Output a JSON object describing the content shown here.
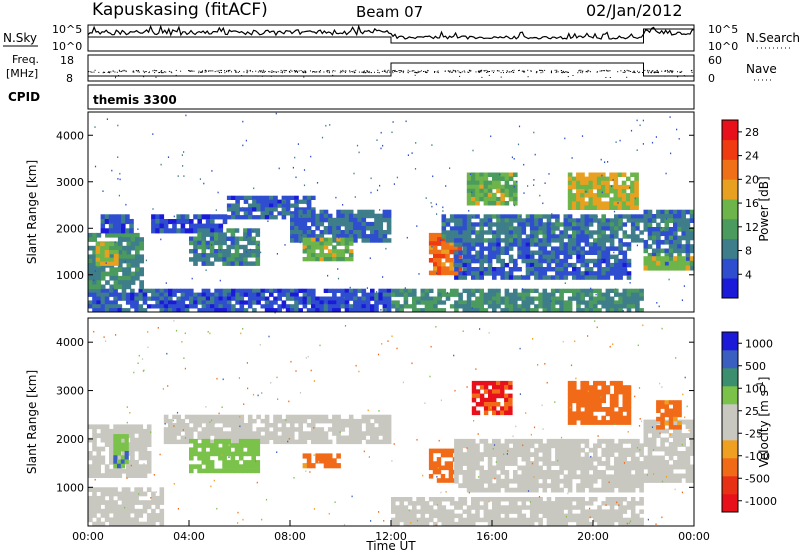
{
  "header": {
    "station": "Kapuskasing (fitACF)",
    "beam": "Beam 07",
    "date": "02/Jan/2012"
  },
  "top_panels": {
    "nsky": {
      "label": "N.Sky",
      "tick_top": "10^5",
      "tick_bottom": "10^0"
    },
    "nsearch": {
      "label": "N.Search",
      "tick_top": "10^5",
      "tick_bottom": "10^0"
    },
    "freq": {
      "label_line1": "Freq.",
      "label_line2": "[MHz]",
      "tick_top": "18",
      "tick_bottom": "8"
    },
    "nave": {
      "label": "Nave",
      "tick_top": "60",
      "tick_bottom": "0"
    },
    "cpid": {
      "label": "CPID",
      "value": "themis 3300"
    }
  },
  "colors": {
    "power_scale": [
      "#1a1ad8",
      "#2e4ecf",
      "#3e7d8a",
      "#4b9a5e",
      "#6db44a",
      "#e8a020",
      "#f07018",
      "#f03a10",
      "#e8101a"
    ],
    "velocity_scale": [
      "#1a1ad8",
      "#3a5fc0",
      "#3c8f6e",
      "#7ac24a",
      "#c8c8c0",
      "#c8c8c0",
      "#f0a020",
      "#f06a18",
      "#e83015",
      "#e8101a"
    ]
  },
  "chart_data": [
    {
      "type": "heatmap",
      "name": "power-panel",
      "ylabel": "Slant Range [km]",
      "xlabel": "",
      "xlim": [
        "00:00",
        "00:00"
      ],
      "ylim": [
        200,
        4500
      ],
      "yticks": [
        "1000",
        "2000",
        "3000",
        "4000"
      ],
      "colorbar": {
        "label": "Power [dB]",
        "ticks": [
          "4",
          "8",
          "12",
          "16",
          "20",
          "24",
          "28"
        ],
        "range": [
          0,
          30
        ]
      },
      "regions": [
        {
          "t0": 0.0,
          "t1": 3.0,
          "r0": 200,
          "r1": 700,
          "v": 6
        },
        {
          "t0": 0.0,
          "t1": 2.2,
          "r0": 700,
          "r1": 1900,
          "v": 10
        },
        {
          "t0": 0.3,
          "t1": 1.2,
          "r0": 1200,
          "r1": 1700,
          "v": 16
        },
        {
          "t0": 0.5,
          "t1": 1.8,
          "r0": 1900,
          "r1": 2300,
          "v": 5
        },
        {
          "t0": 2.5,
          "t1": 5.5,
          "r0": 1900,
          "r1": 2300,
          "v": 5
        },
        {
          "t0": 4.0,
          "t1": 6.8,
          "r0": 1200,
          "r1": 2000,
          "v": 9
        },
        {
          "t0": 5.5,
          "t1": 9.0,
          "r0": 2200,
          "r1": 2700,
          "v": 6
        },
        {
          "t0": 8.0,
          "t1": 12.0,
          "r0": 1700,
          "r1": 2400,
          "v": 7
        },
        {
          "t0": 8.5,
          "t1": 10.5,
          "r0": 1300,
          "r1": 1800,
          "v": 14
        },
        {
          "t0": 3.0,
          "t1": 12.0,
          "r0": 200,
          "r1": 700,
          "v": 5
        },
        {
          "t0": 12.0,
          "t1": 22.0,
          "r0": 200,
          "r1": 700,
          "v": 10
        },
        {
          "t0": 13.5,
          "t1": 14.8,
          "r0": 1000,
          "r1": 1900,
          "v": 22
        },
        {
          "t0": 14.5,
          "t1": 21.5,
          "r0": 900,
          "r1": 1700,
          "v": 6
        },
        {
          "t0": 14.0,
          "t1": 22.0,
          "r0": 1700,
          "r1": 2300,
          "v": 8
        },
        {
          "t0": 15.0,
          "t1": 17.0,
          "r0": 2500,
          "r1": 3200,
          "v": 14
        },
        {
          "t0": 19.0,
          "t1": 21.8,
          "r0": 2400,
          "r1": 3200,
          "v": 17
        },
        {
          "t0": 22.0,
          "t1": 24.0,
          "r0": 1100,
          "r1": 2400,
          "v": 8
        },
        {
          "t0": 22.0,
          "t1": 24.0,
          "r0": 1100,
          "r1": 1400,
          "v": 16
        }
      ]
    },
    {
      "type": "heatmap",
      "name": "velocity-panel",
      "ylabel": "Slant Range [km]",
      "xlabel": "Time UT",
      "xticks": [
        "00:00",
        "04:00",
        "08:00",
        "12:00",
        "16:00",
        "20:00",
        "00:00"
      ],
      "ylim": [
        200,
        4500
      ],
      "yticks": [
        "1000",
        "2000",
        "3000",
        "4000"
      ],
      "colorbar": {
        "label": "Velocity [m s",
        "label_sup": "-1",
        "label_end": "]",
        "ticks": [
          "1000",
          "500",
          "100",
          "25",
          "-25",
          "-100",
          "-500",
          "-1000"
        ]
      },
      "regions": [
        {
          "t0": 0.0,
          "t1": 3.0,
          "r0": 200,
          "r1": 1000,
          "v": 0
        },
        {
          "t0": 0.0,
          "t1": 2.5,
          "r0": 1200,
          "r1": 2300,
          "v": 0
        },
        {
          "t0": 1.0,
          "t1": 1.6,
          "r0": 1400,
          "r1": 2100,
          "v": 80
        },
        {
          "t0": 3.0,
          "t1": 12.0,
          "r0": 1900,
          "r1": 2500,
          "v": 0
        },
        {
          "t0": 4.0,
          "t1": 6.8,
          "r0": 1300,
          "r1": 2000,
          "v": 60
        },
        {
          "t0": 8.5,
          "t1": 10.0,
          "r0": 1400,
          "r1": 1700,
          "v": -150
        },
        {
          "t0": 12.0,
          "t1": 22.0,
          "r0": 200,
          "r1": 800,
          "v": 0
        },
        {
          "t0": 13.5,
          "t1": 14.6,
          "r0": 1100,
          "r1": 1800,
          "v": -200
        },
        {
          "t0": 14.5,
          "t1": 22.0,
          "r0": 900,
          "r1": 2000,
          "v": 0
        },
        {
          "t0": 15.2,
          "t1": 16.8,
          "r0": 2500,
          "r1": 3200,
          "v": -600
        },
        {
          "t0": 19.0,
          "t1": 21.5,
          "r0": 2300,
          "r1": 3200,
          "v": -300
        },
        {
          "t0": 22.0,
          "t1": 24.0,
          "r0": 1100,
          "r1": 2400,
          "v": 0
        },
        {
          "t0": 22.5,
          "t1": 23.5,
          "r0": 2200,
          "r1": 2800,
          "v": -150
        }
      ]
    }
  ]
}
